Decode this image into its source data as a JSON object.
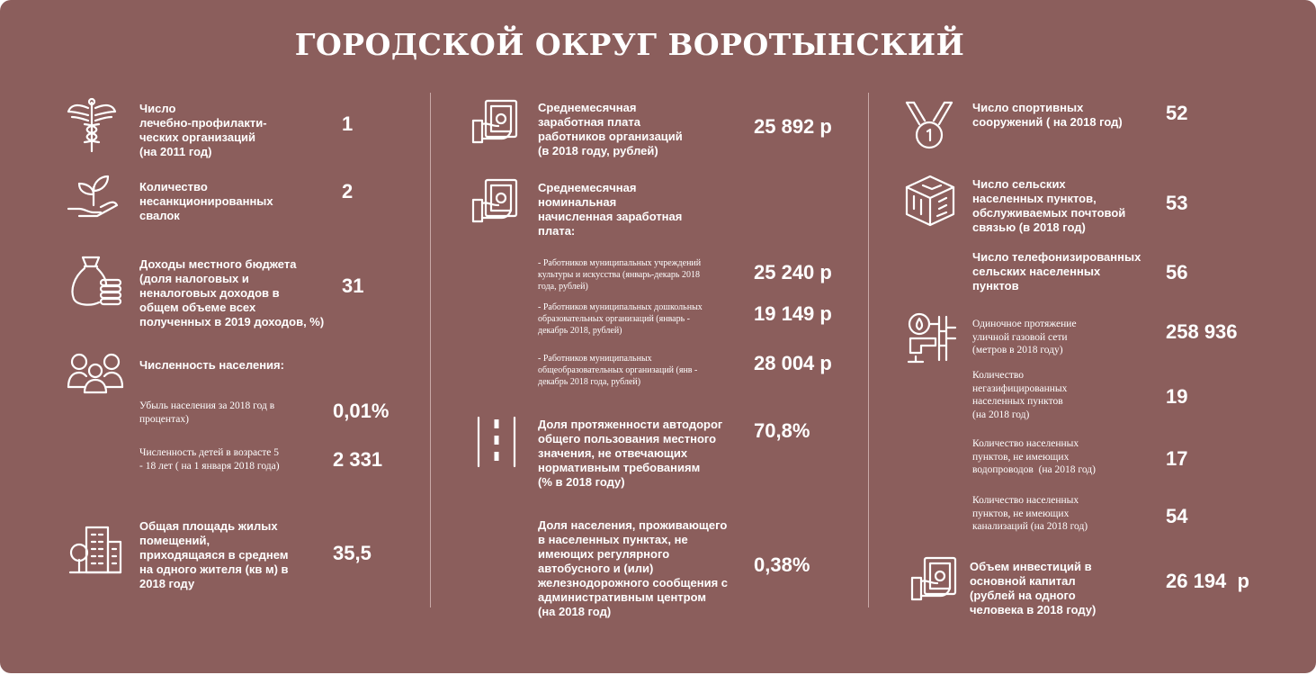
{
  "title": "ГОРОДСКОЙ ОКРУГ ВОРОТЫНСКИЙ",
  "col1": {
    "medical": {
      "label": "Число\nлечебно-профилакти-\nческих организаций\n(на 2011 год)",
      "value": "1"
    },
    "dumps": {
      "label": "Количество\nнесанкционированных\nсвалок",
      "value": "2"
    },
    "budget": {
      "label": "Доходы местного бюджета\n(доля налоговых и\nненалоговых доходов в\nобщем объеме всех\nполученных в 2019 доходов, %)",
      "value": "31"
    },
    "population": {
      "label": "Численность населения:"
    },
    "decline": {
      "label": "Убыль населения за 2018 год в\nпроцентах)",
      "value": "0,01%"
    },
    "children": {
      "label": "Численность детей в возрасте 5\n- 18 лет ( на 1 января 2018 года)",
      "value": "2 331"
    },
    "housing": {
      "label": "Общая площадь жилых\nпомещений,\nприходящаяся в среднем\nна одного жителя (кв м) в\n2018 году",
      "value": "35,5"
    }
  },
  "col2": {
    "avg_salary": {
      "label": "Среднемесячная\nзаработная плата\nработников организаций\n(в 2018 году, рублей)",
      "value": "25 892 р"
    },
    "nominal_salary": {
      "label": "Среднемесячная\nноминальная\nначисленная заработная\nплата:"
    },
    "culture": {
      "label": "- Работников муниципальных учреждений\nкультуры и искусства (январь-декарь 2018\nгода, рублей)",
      "value": "25 240 р"
    },
    "preschool": {
      "label": "- Работников муниципальных дошкольных\nобразовательных организаций (январь -\nдекабрь 2018, рублей)",
      "value": "19 149 р"
    },
    "school": {
      "label": "- Работников муниципальных\nобщеобразовательных организаций (янв -\nдекабрь 2018 года, рублей)",
      "value": "28 004 р"
    },
    "roads": {
      "label": "Доля протяженности автодорог\nобщего пользования местного\nзначения, не отвечающих\nнормативным требованиям\n(% в 2018 году)",
      "value": "70,8%"
    },
    "bus": {
      "label": "Доля населения, проживающего\nв населенных пунктах, не\nимеющих регулярного\nавтобусного и (или)\nжелезнодорожного сообщения с\nадминистративным центром\n(на 2018 год)",
      "value": "0,38%"
    }
  },
  "col3": {
    "sports": {
      "label": "Число спортивных\nсооружений ( на 2018 год)",
      "value": "52"
    },
    "postal": {
      "label": "Число сельских\nнаселенных пунктов,\nобслуживаемых почтовой\nсвязью (в 2018 год)",
      "value": "53"
    },
    "phone": {
      "label": "Число телефонизированных\nсельских населенных\nпунктов",
      "value": "56"
    },
    "gas_length": {
      "label": "Одиночное протяжение\nуличной газовой сети\n(метров в 2018 году)",
      "value": "258 936"
    },
    "no_gas": {
      "label": "Количество\nнегазифицированных\nнаселенных пунктов\n(на 2018 год)",
      "value": "19"
    },
    "no_water": {
      "label": "Количество населенных\nпунктов, не имеющих\nводопроводов  (на 2018 год)",
      "value": "17"
    },
    "no_sewer": {
      "label": "Количество населенных\nпунктов, не имеющих\nканализаций (на 2018 год)",
      "value": "54"
    },
    "investment": {
      "label": "Объем инвестиций в\nосновной капитал\n(рублей на одного\nчеловека в 2018 году)",
      "value": "26 194  р"
    }
  },
  "icons": [
    "caduceus-icon",
    "plant-hand-icon",
    "money-bag-icon",
    "people-group-icon",
    "buildings-icon",
    "money-hand-icon",
    "road-icon",
    "medal-icon",
    "network-cube-icon",
    "gas-pipe-icon"
  ]
}
